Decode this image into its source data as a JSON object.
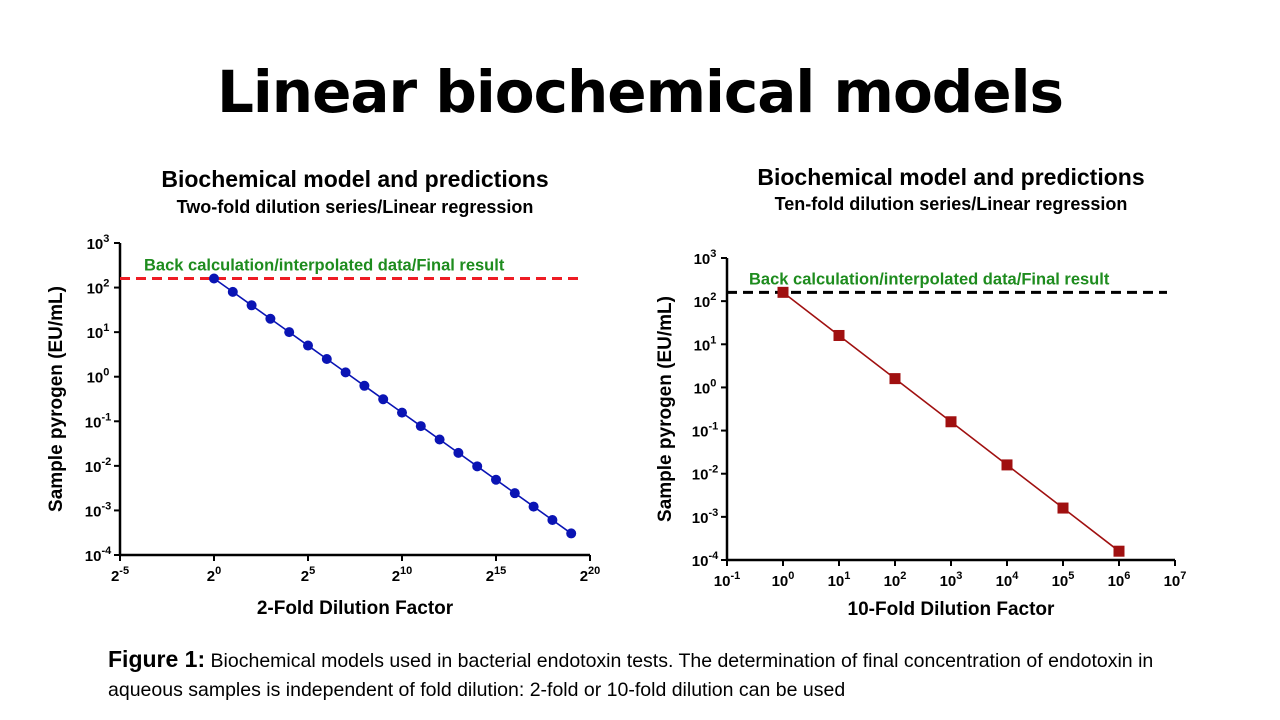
{
  "slide": {
    "title": "Linear biochemical models",
    "caption_label": "Figure 1:",
    "caption_text": "Biochemical models used in bacterial endotoxin tests. The determination of final concentration of endotoxin in aqueous samples is independent of fold dilution: 2-fold or 10-fold dilution can be used"
  },
  "chart_data": [
    {
      "type": "line",
      "title": "Biochemical model and predictions",
      "subtitle": "Two-fold dilution series/Linear regression",
      "xlabel": "2-Fold Dilution Factor",
      "ylabel": "Sample pyrogen (EU/mL)",
      "x_scale": "log2",
      "y_scale": "log10",
      "x_ticks": [
        -5,
        0,
        5,
        10,
        15,
        20
      ],
      "x_tick_base": "2",
      "y_ticks": [
        -4,
        -3,
        -2,
        -1,
        0,
        1,
        2,
        3
      ],
      "y_tick_base": "10",
      "xlim_exponent": [
        -5,
        20
      ],
      "ylim_exponent": [
        -4,
        3
      ],
      "reference_line": {
        "y": 160,
        "label": "Back calculation/interpolated data/Final result",
        "color": "#ee1c24",
        "label_color": "#1e8c1e"
      },
      "series": [
        {
          "color": "#0a14b4",
          "marker": "circle",
          "x_exponent": [
            0,
            1,
            2,
            3,
            4,
            5,
            6,
            7,
            8,
            9,
            10,
            11,
            12,
            13,
            14,
            15,
            16,
            17,
            18,
            19
          ],
          "y": [
            160,
            80,
            40,
            20,
            10,
            5,
            2.5,
            1.25,
            0.625,
            0.3125,
            0.15625,
            0.078125,
            0.0390625,
            0.01953,
            0.009766,
            0.004883,
            0.002441,
            0.001221,
            0.00061,
            0.000305
          ]
        }
      ]
    },
    {
      "type": "line",
      "title": "Biochemical model and predictions",
      "subtitle": "Ten-fold dilution series/Linear regression",
      "xlabel": "10-Fold Dilution Factor",
      "ylabel": "Sample pyrogen (EU/mL)",
      "x_scale": "log10",
      "y_scale": "log10",
      "x_ticks": [
        -1,
        0,
        1,
        2,
        3,
        4,
        5,
        6,
        7
      ],
      "x_tick_base": "10",
      "y_ticks": [
        -4,
        -3,
        -2,
        -1,
        0,
        1,
        2,
        3
      ],
      "y_tick_base": "10",
      "xlim_exponent": [
        -1,
        7
      ],
      "ylim_exponent": [
        -4,
        3
      ],
      "reference_line": {
        "y": 160,
        "label": "Back calculation/interpolated data/Final result",
        "color": "#000000",
        "label_color": "#1e8c1e"
      },
      "series": [
        {
          "color": "#a01010",
          "marker": "square",
          "x_exponent": [
            0,
            1,
            2,
            3,
            4,
            5,
            6
          ],
          "y": [
            160,
            16,
            1.6,
            0.16,
            0.016,
            0.0016,
            0.00016
          ]
        }
      ]
    }
  ]
}
